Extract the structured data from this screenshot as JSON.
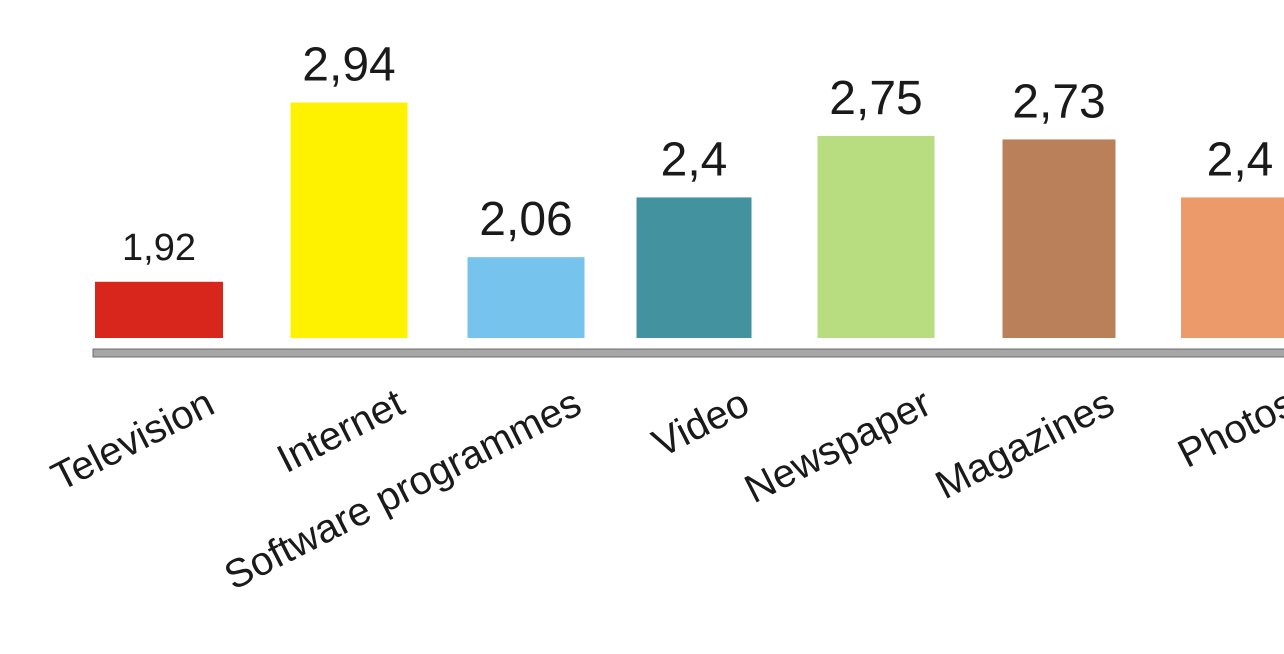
{
  "chart_data": {
    "type": "bar",
    "categories": [
      "Television",
      "Internet",
      "Software programmes",
      "Video",
      "Newspaper",
      "Magazines",
      "Photos"
    ],
    "values": [
      1.92,
      2.94,
      2.06,
      2.4,
      2.75,
      2.73,
      2.4
    ],
    "value_labels": [
      "1,92",
      "2,94",
      "2,06",
      "2,4",
      "2,75",
      "2,73",
      "2,4"
    ],
    "colors": [
      "#d9261c",
      "#fff200",
      "#76c4ee",
      "#43929f",
      "#b8dc80",
      "#b98059",
      "#ed9a6a"
    ],
    "ylim": [
      1.6,
      3.0
    ]
  }
}
